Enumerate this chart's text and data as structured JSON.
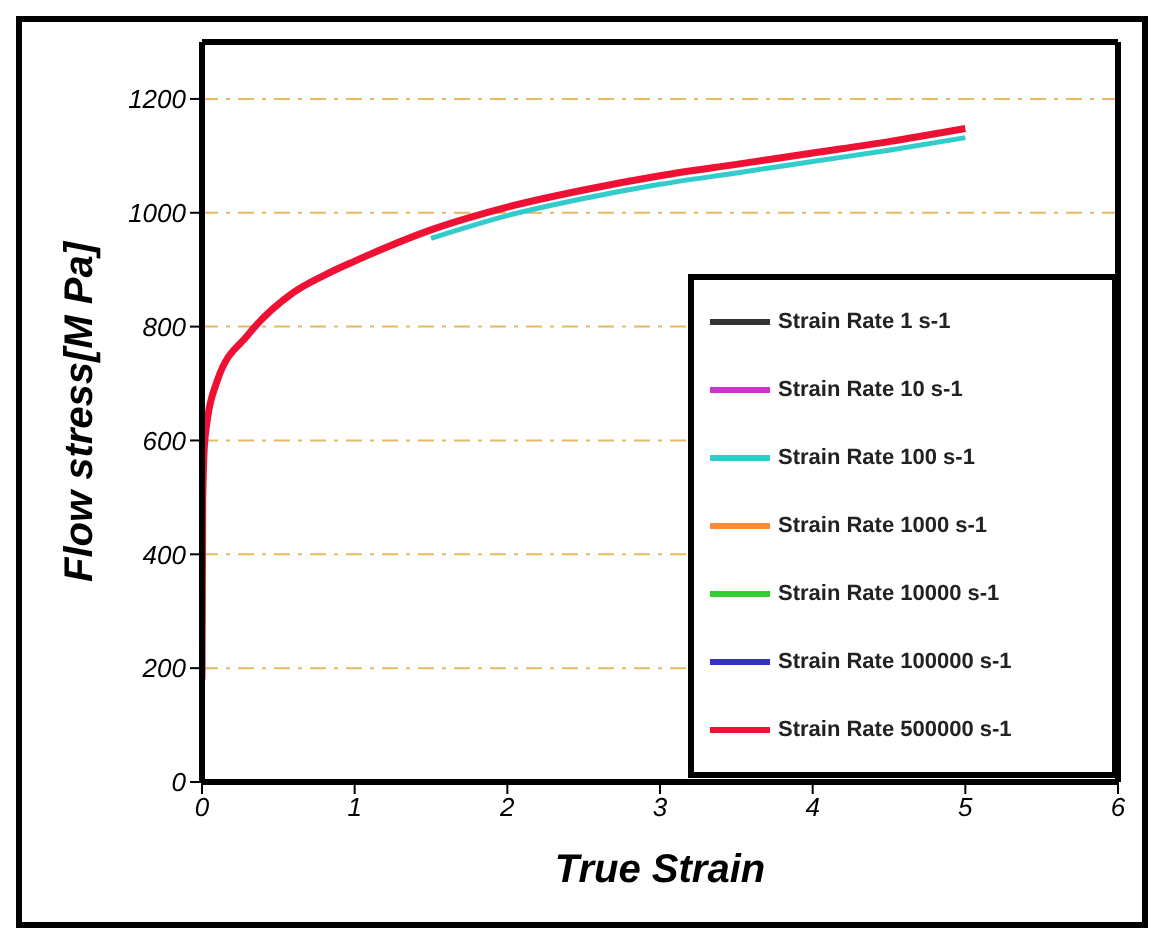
{
  "chart_data": {
    "type": "line",
    "xlabel": "True Strain",
    "ylabel": "Flow stress[M Pa]",
    "x": [
      0,
      0.005,
      0.02,
      0.1,
      0.3,
      0.6,
      0.8,
      1,
      1.5,
      2,
      2.5,
      3,
      3.5,
      4,
      4.5,
      5
    ],
    "series": [
      {
        "name": "Strain Rate 1 s-1",
        "color": "#333333",
        "values": [
          null,
          null,
          null,
          null,
          null,
          null,
          null,
          null,
          null,
          null,
          null,
          null,
          null,
          null,
          null,
          null
        ]
      },
      {
        "name": "Strain Rate 10 s-1",
        "color": "#cc33cc",
        "values": [
          null,
          null,
          null,
          null,
          null,
          null,
          null,
          null,
          null,
          null,
          null,
          null,
          null,
          null,
          null,
          null
        ]
      },
      {
        "name": "Strain Rate 100 s-1",
        "color": "#33cccc",
        "values": [
          null,
          null,
          null,
          null,
          null,
          null,
          null,
          null,
          955,
          995,
          1025,
          1050,
          1070,
          1090,
          1110,
          1132
        ]
      },
      {
        "name": "Strain Rate 1000 s-1",
        "color": "#ff8833",
        "values": [
          null,
          null,
          null,
          null,
          null,
          null,
          null,
          null,
          null,
          null,
          null,
          null,
          null,
          null,
          null,
          null
        ]
      },
      {
        "name": "Strain Rate 10000 s-1",
        "color": "#33cc33",
        "values": [
          null,
          null,
          null,
          null,
          null,
          null,
          null,
          null,
          null,
          null,
          null,
          null,
          null,
          null,
          null,
          null
        ]
      },
      {
        "name": "Strain Rate 100000 s-1",
        "color": "#3333cc",
        "values": [
          null,
          null,
          null,
          null,
          null,
          null,
          null,
          null,
          null,
          null,
          null,
          null,
          null,
          null,
          null,
          null
        ]
      },
      {
        "name": "Strain Rate 500000 s-1",
        "color": "#ee1133",
        "values": [
          180,
          500,
          605,
          705,
          785,
          860,
          890,
          915,
          970,
          1010,
          1040,
          1065,
          1085,
          1105,
          1125,
          1148
        ]
      }
    ],
    "xlim": [
      0,
      6
    ],
    "xticks": [
      0,
      1,
      2,
      3,
      4,
      5,
      6
    ],
    "ylim": [
      0,
      1300
    ],
    "yticks": [
      0,
      200,
      400,
      600,
      800,
      1000,
      1200
    ],
    "grid": "y",
    "legend": "bottom right",
    "marker": "none",
    "line_style": "solid"
  }
}
